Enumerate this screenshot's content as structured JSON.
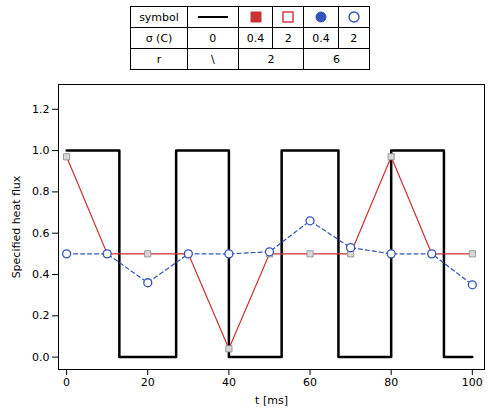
{
  "chart_data": {
    "type": "line",
    "xlabel": "t [ms]",
    "ylabel": "Specified heat flux",
    "xlim": [
      -2,
      103
    ],
    "ylim": [
      -0.06,
      1.32
    ],
    "xticks": [
      0,
      20,
      40,
      60,
      80,
      100
    ],
    "yticks": [
      {
        "value": 0.0,
        "label": "0.0"
      },
      0.2,
      0.4,
      0.6,
      0.8,
      {
        "value": 1.0,
        "label": "1.0"
      },
      1.2
    ],
    "series": [
      {
        "x": [
          0,
          13,
          13,
          27,
          27,
          40,
          40,
          53,
          53,
          67,
          67,
          80,
          80,
          93,
          93,
          100
        ],
        "values": [
          1,
          1,
          0,
          0,
          1,
          1,
          0,
          0,
          1,
          1,
          0,
          0,
          1,
          1,
          0,
          0
        ],
        "color": "#000000",
        "line_style": "solid",
        "marker": "none"
      },
      {
        "x": [
          0,
          10,
          20,
          30,
          40,
          50,
          60,
          70,
          80,
          90,
          100
        ],
        "values": [
          0.97,
          0.5,
          0.5,
          0.5,
          0.04,
          0.5,
          0.5,
          0.5,
          0.97,
          0.5,
          0.5
        ],
        "color": "#cc3333",
        "line_style": "solid",
        "marker": "square"
      },
      {
        "x": [
          0,
          10,
          20,
          30,
          40,
          50,
          60,
          70,
          80,
          90,
          100
        ],
        "values": [
          0.5,
          0.5,
          0.36,
          0.5,
          0.5,
          0.51,
          0.66,
          0.53,
          0.5,
          0.5,
          0.35
        ],
        "color": "#3355bb",
        "line_style": "dashed",
        "marker": "circle"
      }
    ],
    "legend_table": {
      "row_labels": [
        "symbol",
        "σ (C)",
        "r"
      ],
      "groups": [
        {
          "r": "\\",
          "columns": [
            {
              "marker": "line",
              "color": "#000000",
              "sigma": "0"
            }
          ]
        },
        {
          "r": "2",
          "columns": [
            {
              "marker": "square",
              "color": "#cc3333",
              "sigma": "0.4"
            },
            {
              "marker": "open square",
              "color": "#cc3333",
              "sigma": "2"
            }
          ]
        },
        {
          "r": "6",
          "columns": [
            {
              "marker": "circle",
              "color": "#3355bb",
              "sigma": "0.4"
            },
            {
              "marker": "open circle",
              "color": "#3355bb",
              "sigma": "2"
            }
          ]
        }
      ]
    }
  }
}
